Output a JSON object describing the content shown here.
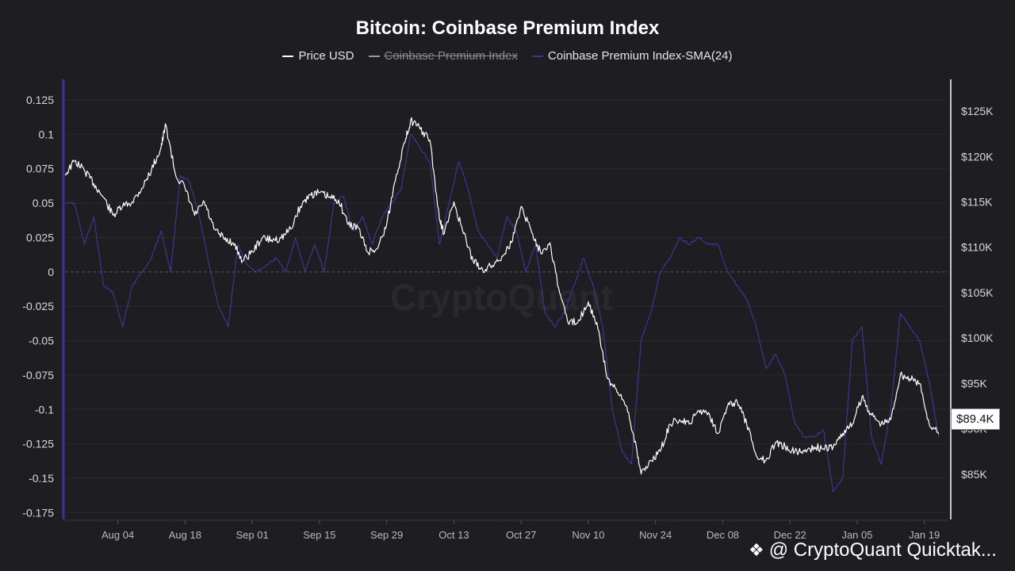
{
  "header": {
    "title": "Bitcoin: Coinbase Premium Index"
  },
  "legend": [
    {
      "label": "Price USD",
      "color": "#ffffff",
      "hidden": false
    },
    {
      "label": "Coinbase Premium Index",
      "color": "#9a9aa2",
      "hidden": true
    },
    {
      "label": "Coinbase Premium Index-SMA(24)",
      "color": "#3f3590",
      "hidden": false
    }
  ],
  "watermark": "CryptoQuant",
  "price_tag": "$89.4K",
  "credit": {
    "text": "@ CryptoQuant Quicktak...",
    "icon": "binance-logo-icon"
  },
  "colors": {
    "background": "#1e1d22",
    "price": "#ffffff",
    "sma": "#3f3590",
    "axis_left": "#3b3396",
    "axis_right": "#ffffff"
  },
  "chart_data": {
    "type": "line",
    "title": "Bitcoin: Coinbase Premium Index",
    "x_range": [
      "2025-07-24",
      "2026-01-24"
    ],
    "x_ticks": [
      "Aug 04",
      "Aug 18",
      "Sep 01",
      "Sep 15",
      "Sep 29",
      "Oct 13",
      "Oct 27",
      "Nov 10",
      "Nov 24",
      "Dec 08",
      "Dec 22",
      "Jan 05",
      "Jan 19"
    ],
    "y_left": {
      "ylim": [
        -0.18,
        0.14
      ],
      "ticks": [
        "0.125",
        "0.1",
        "0.075",
        "0.05",
        "0.025",
        "0",
        "-0.025",
        "-0.05",
        "-0.075",
        "-0.1",
        "-0.125",
        "-0.15",
        "-0.175"
      ]
    },
    "y_right": {
      "ylim": [
        80000,
        128500
      ],
      "ticks": [
        "$125K",
        "$120K",
        "$115K",
        "$110K",
        "$105K",
        "$100K",
        "$95K",
        "$90K",
        "$85K"
      ]
    },
    "series": [
      {
        "name": "Price USD",
        "axis": "right",
        "x": [
          "2025-07-24",
          "2025-07-26",
          "2025-07-28",
          "2025-07-30",
          "2025-08-01",
          "2025-08-03",
          "2025-08-05",
          "2025-08-07",
          "2025-08-09",
          "2025-08-11",
          "2025-08-13",
          "2025-08-14",
          "2025-08-16",
          "2025-08-18",
          "2025-08-20",
          "2025-08-22",
          "2025-08-24",
          "2025-08-26",
          "2025-08-28",
          "2025-08-30",
          "2025-09-01",
          "2025-09-03",
          "2025-09-05",
          "2025-09-07",
          "2025-09-09",
          "2025-09-11",
          "2025-09-13",
          "2025-09-15",
          "2025-09-17",
          "2025-09-19",
          "2025-09-21",
          "2025-09-23",
          "2025-09-25",
          "2025-09-27",
          "2025-09-29",
          "2025-10-01",
          "2025-10-03",
          "2025-10-04",
          "2025-10-06",
          "2025-10-08",
          "2025-10-10",
          "2025-10-11",
          "2025-10-13",
          "2025-10-15",
          "2025-10-17",
          "2025-10-19",
          "2025-10-21",
          "2025-10-23",
          "2025-10-25",
          "2025-10-27",
          "2025-10-29",
          "2025-10-31",
          "2025-11-02",
          "2025-11-04",
          "2025-11-06",
          "2025-11-08",
          "2025-11-10",
          "2025-11-12",
          "2025-11-14",
          "2025-11-16",
          "2025-11-18",
          "2025-11-20",
          "2025-11-21",
          "2025-11-23",
          "2025-11-25",
          "2025-11-27",
          "2025-11-29",
          "2025-12-01",
          "2025-12-03",
          "2025-12-05",
          "2025-12-07",
          "2025-12-09",
          "2025-12-11",
          "2025-12-13",
          "2025-12-15",
          "2025-12-17",
          "2025-12-19",
          "2025-12-21",
          "2025-12-23",
          "2025-12-25",
          "2025-12-27",
          "2025-12-29",
          "2025-12-31",
          "2026-01-02",
          "2026-01-04",
          "2026-01-06",
          "2026-01-08",
          "2026-01-10",
          "2026-01-12",
          "2026-01-14",
          "2026-01-16",
          "2026-01-18",
          "2026-01-20",
          "2026-01-22"
        ],
        "values": [
          118000,
          119500,
          118500,
          117000,
          115500,
          113500,
          114500,
          115000,
          116500,
          118500,
          121000,
          123500,
          118000,
          116500,
          113500,
          115000,
          112000,
          111000,
          110500,
          108500,
          109500,
          111000,
          110800,
          111000,
          112000,
          114500,
          115800,
          116000,
          115500,
          115200,
          112500,
          112200,
          109500,
          109800,
          112500,
          118000,
          122000,
          124000,
          123000,
          121800,
          113000,
          111500,
          115000,
          111500,
          108500,
          107500,
          108000,
          109000,
          110500,
          114500,
          112000,
          109500,
          110500,
          105000,
          101500,
          102000,
          104000,
          101000,
          95500,
          94000,
          92500,
          88000,
          85000,
          86500,
          87500,
          90500,
          91000,
          90500,
          92000,
          91800,
          89500,
          92500,
          93000,
          90500,
          87000,
          86500,
          88500,
          88000,
          87500,
          87500,
          88000,
          87800,
          88000,
          89500,
          90500,
          93500,
          91500,
          90500,
          91000,
          96000,
          95500,
          95000,
          90500,
          89400
        ]
      },
      {
        "name": "Coinbase Premium Index-SMA(24)",
        "axis": "left",
        "x": [
          "2025-07-24",
          "2025-07-26",
          "2025-07-28",
          "2025-07-30",
          "2025-08-01",
          "2025-08-03",
          "2025-08-05",
          "2025-08-07",
          "2025-08-09",
          "2025-08-11",
          "2025-08-13",
          "2025-08-15",
          "2025-08-17",
          "2025-08-19",
          "2025-08-21",
          "2025-08-23",
          "2025-08-25",
          "2025-08-27",
          "2025-08-29",
          "2025-08-31",
          "2025-09-02",
          "2025-09-04",
          "2025-09-06",
          "2025-09-08",
          "2025-09-10",
          "2025-09-12",
          "2025-09-14",
          "2025-09-16",
          "2025-09-18",
          "2025-09-20",
          "2025-09-22",
          "2025-09-24",
          "2025-09-26",
          "2025-09-28",
          "2025-09-30",
          "2025-10-02",
          "2025-10-04",
          "2025-10-06",
          "2025-10-08",
          "2025-10-10",
          "2025-10-12",
          "2025-10-14",
          "2025-10-16",
          "2025-10-18",
          "2025-10-20",
          "2025-10-22",
          "2025-10-24",
          "2025-10-26",
          "2025-10-28",
          "2025-10-30",
          "2025-11-01",
          "2025-11-03",
          "2025-11-05",
          "2025-11-07",
          "2025-11-09",
          "2025-11-11",
          "2025-11-13",
          "2025-11-15",
          "2025-11-17",
          "2025-11-19",
          "2025-11-21",
          "2025-11-23",
          "2025-11-25",
          "2025-11-27",
          "2025-11-29",
          "2025-12-01",
          "2025-12-03",
          "2025-12-05",
          "2025-12-07",
          "2025-12-09",
          "2025-12-11",
          "2025-12-13",
          "2025-12-15",
          "2025-12-17",
          "2025-12-19",
          "2025-12-21",
          "2025-12-23",
          "2025-12-25",
          "2025-12-27",
          "2025-12-29",
          "2025-12-31",
          "2026-01-02",
          "2026-01-04",
          "2026-01-06",
          "2026-01-08",
          "2026-01-10",
          "2026-01-12",
          "2026-01-14",
          "2026-01-16",
          "2026-01-18",
          "2026-01-20",
          "2026-01-22"
        ],
        "values": [
          0.05,
          0.05,
          0.02,
          0.04,
          -0.01,
          -0.015,
          -0.04,
          -0.01,
          0.0,
          0.01,
          0.03,
          0.0,
          0.07,
          0.065,
          0.04,
          0.005,
          -0.025,
          -0.04,
          0.02,
          0.005,
          0.0,
          0.005,
          0.01,
          0.0,
          0.025,
          0.0,
          0.02,
          0.0,
          0.05,
          0.055,
          0.03,
          0.04,
          0.02,
          0.04,
          0.05,
          0.06,
          0.1,
          0.09,
          0.08,
          0.02,
          0.05,
          0.08,
          0.06,
          0.03,
          0.02,
          0.01,
          0.04,
          0.03,
          0.0,
          0.02,
          -0.03,
          -0.04,
          -0.03,
          -0.01,
          0.01,
          -0.01,
          -0.04,
          -0.1,
          -0.13,
          -0.14,
          -0.05,
          -0.03,
          0.0,
          0.01,
          0.025,
          0.02,
          0.025,
          0.02,
          0.02,
          0.0,
          -0.01,
          -0.02,
          -0.04,
          -0.07,
          -0.06,
          -0.075,
          -0.11,
          -0.12,
          -0.12,
          -0.115,
          -0.16,
          -0.15,
          -0.05,
          -0.04,
          -0.12,
          -0.14,
          -0.1,
          -0.03,
          -0.04,
          -0.05,
          -0.08,
          -0.12
        ]
      }
    ]
  }
}
